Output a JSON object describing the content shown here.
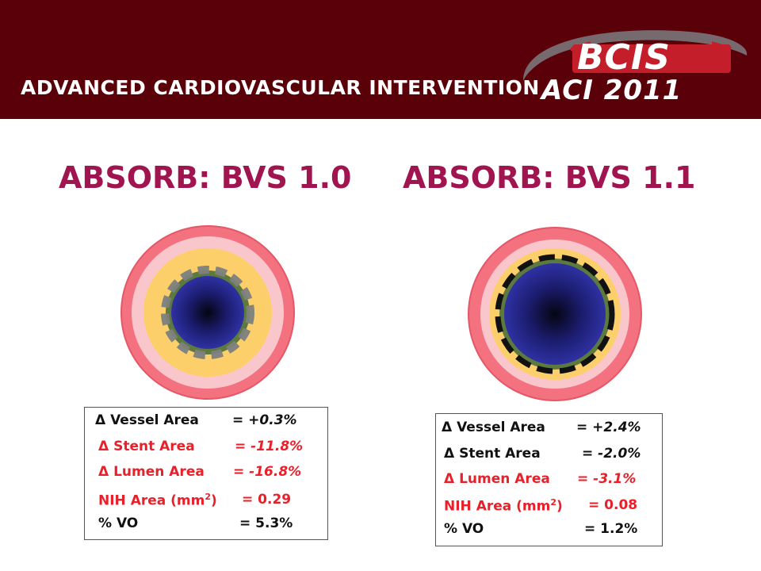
{
  "header": {
    "title": "ADVANCED CARDIOVASCULAR INTERVENTION",
    "logo_text": "BCIS",
    "event": "ACI 2011"
  },
  "columns": [
    {
      "title": "ABSORB: BVS 1.0",
      "stats": {
        "vessel_label": "Δ Vessel Area",
        "vessel_value": "= +0.3%",
        "stent_label": "Δ Stent Area",
        "stent_value": "= -11.8%",
        "lumen_label": "Δ Lumen Area",
        "lumen_value": "= -16.8%",
        "nih_label_pre": "NIH Area (mm",
        "nih_sup": "2",
        "nih_label_post": ")",
        "nih_value": "= 0.29",
        "vo_label": "% VO",
        "vo_value": "= 5.3%"
      }
    },
    {
      "title": "ABSORB: BVS 1.1",
      "stats": {
        "vessel_label": "Δ Vessel Area",
        "vessel_value": "= +2.4%",
        "stent_label": "Δ Stent Area",
        "stent_value": "= -2.0%",
        "lumen_label": "Δ Lumen Area",
        "lumen_value": "= -3.1%",
        "nih_label_pre": "NIH Area (mm",
        "nih_sup": "2",
        "nih_label_post": ")",
        "nih_value": "= 0.08",
        "vo_label": "% VO",
        "vo_value": "= 1.2%"
      }
    }
  ],
  "colors": {
    "header_bg": "#5a0008",
    "title": "#a0154f",
    "positive_stat": "#111111",
    "negative_stat": "#e8202a",
    "vessel_outer": "#f4727f",
    "vessel_inner": "#f9c6cc",
    "plaque": "#fdcf6a",
    "tissue_ring": "#5c7a3e",
    "lumen": "#26288f"
  }
}
